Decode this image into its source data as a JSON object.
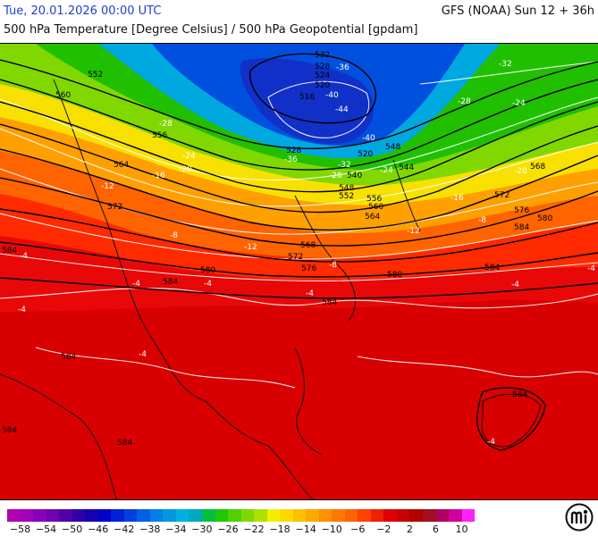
{
  "header": {
    "valid_time": "Tue, 20.01.2026 00:00 UTC",
    "model_run": "GFS (NOAA) Sun 12 + 36h",
    "parameter": "500 hPa Temperature [Degree Celsius] / 500 hPa Geopotential [gpdam]"
  },
  "colorbar": {
    "labels": [
      "−58",
      "−54",
      "−50",
      "−46",
      "−42",
      "−38",
      "−34",
      "−30",
      "−26",
      "−22",
      "−18",
      "−14",
      "−10",
      "−6",
      "−2",
      "2",
      "6",
      "10"
    ],
    "label_values": [
      -58,
      -54,
      -50,
      -46,
      -42,
      -38,
      -34,
      -30,
      -26,
      -22,
      -18,
      -14,
      -10,
      -6,
      -2,
      2,
      6,
      10
    ],
    "min": -60,
    "max": 12,
    "colors": [
      "#b000b0",
      "#a000b8",
      "#8800b8",
      "#7000b0",
      "#5000a8",
      "#3000a8",
      "#1800b0",
      "#0000c8",
      "#0020d8",
      "#0040e0",
      "#0060e8",
      "#0080e8",
      "#0098e0",
      "#00b0e0",
      "#00a8c0",
      "#00c040",
      "#20c800",
      "#50d000",
      "#80d800",
      "#b0e000",
      "#f0f000",
      "#ffd800",
      "#ffc000",
      "#ffa800",
      "#ff9000",
      "#ff7800",
      "#ff6000",
      "#ff4000",
      "#f02000",
      "#e00000",
      "#c80000",
      "#b00000",
      "#a01020",
      "#b00060",
      "#d000a0",
      "#ff20ff"
    ]
  },
  "contours": {
    "geopotential_labels": [
      "532",
      "528",
      "524",
      "520",
      "516",
      "528",
      "520",
      "552",
      "560",
      "556",
      "564",
      "572",
      "584",
      "568",
      "572",
      "576",
      "580",
      "584",
      "584",
      "548",
      "552",
      "556",
      "560",
      "564",
      "540",
      "544",
      "548",
      "568",
      "572",
      "576",
      "580",
      "584",
      "580",
      "584",
      "584",
      "584",
      "584",
      "584"
    ],
    "temperature_labels": [
      "-36",
      "-40",
      "-44",
      "-40",
      "-36",
      "-32",
      "-28",
      "-24",
      "-28",
      "-24",
      "-20",
      "-16",
      "-12",
      "-8",
      "-12",
      "-8",
      "-4",
      "-4",
      "-4",
      "-4",
      "-4",
      "-4",
      "-32",
      "-28",
      "-24",
      "-20",
      "-16",
      "-12",
      "-8",
      "-4",
      "-4",
      "-4"
    ]
  },
  "logo": {
    "icon": "meteologix-m-logo"
  }
}
